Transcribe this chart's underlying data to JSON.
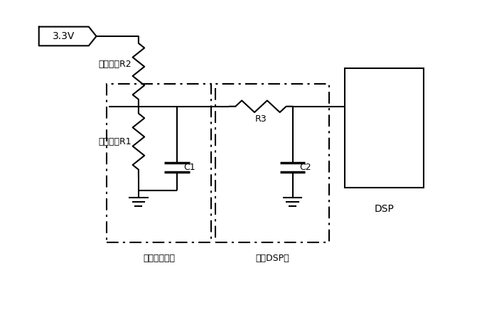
{
  "bg_color": "#ffffff",
  "lw": 1.5,
  "labels": {
    "v33": "3.3V",
    "r2": "上拉电阵R2",
    "r1": "热敏电阵R1",
    "c1": "C1",
    "r3": "R3",
    "c2": "C2",
    "box1": "靠近出入水口",
    "box2": "靠近DSP端",
    "dsp": "DSP"
  },
  "figsize": [
    7.02,
    4.46
  ],
  "dpi": 100,
  "xlim": [
    0,
    10
  ],
  "ylim": [
    0,
    7
  ]
}
